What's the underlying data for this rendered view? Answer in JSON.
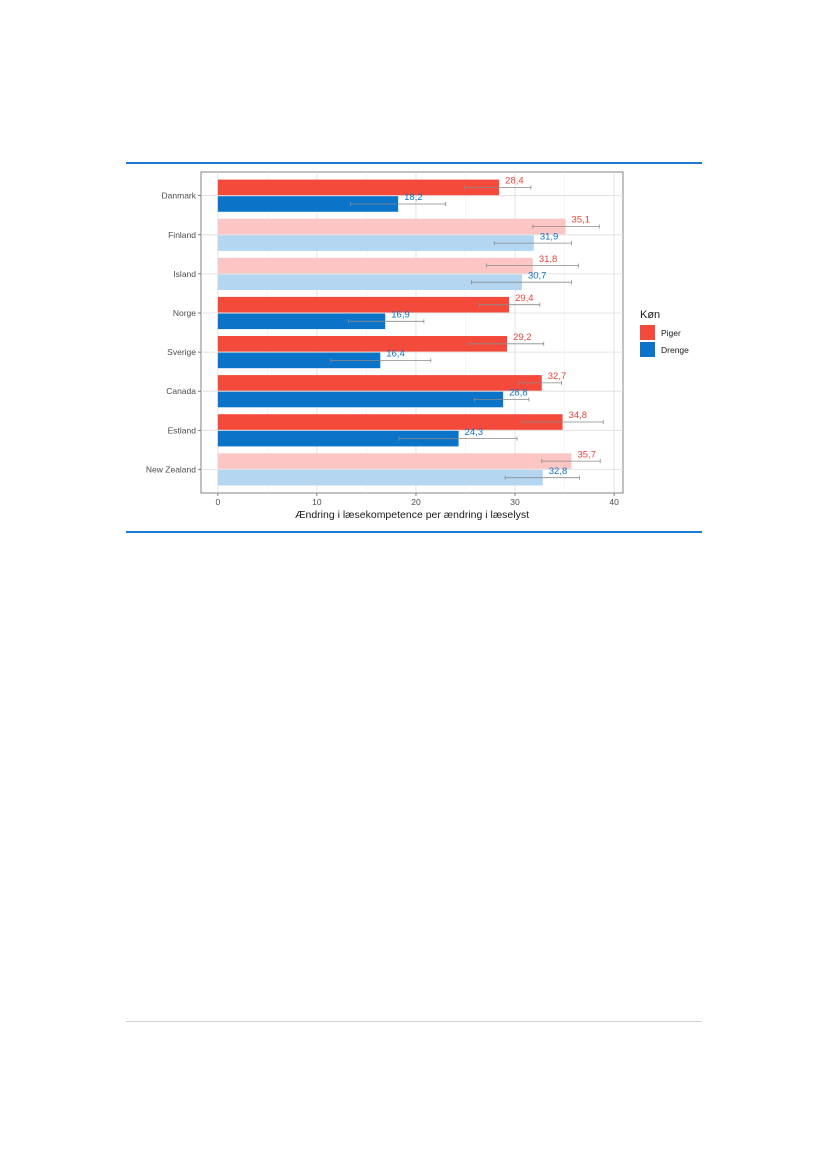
{
  "colors": {
    "rule": "#1f7bd1",
    "piger_strong": "#f44a3c",
    "piger_light": "#fbc6c3",
    "drenge_strong": "#0b74c9",
    "drenge_light": "#b5d6f0",
    "piger_label": "#e8453b",
    "drenge_label": "#1072c2",
    "errorbar": "#8a8a8a"
  },
  "chart_data": {
    "type": "bar",
    "orientation": "horizontal",
    "categories": [
      "Danmark",
      "Finland",
      "Island",
      "Norge",
      "Sverige",
      "Canada",
      "Estland",
      "New Zealand"
    ],
    "highlighted": [
      true,
      false,
      false,
      true,
      true,
      true,
      true,
      false
    ],
    "series": [
      {
        "name": "Piger",
        "values": [
          28.4,
          35.1,
          31.8,
          29.4,
          29.2,
          32.7,
          34.8,
          35.7
        ],
        "labels": [
          "28,4",
          "35,1",
          "31,8",
          "29,4",
          "29,2",
          "32,7",
          "34,8",
          "35,7"
        ],
        "error_low": [
          24.9,
          31.8,
          27.1,
          26.4,
          25.4,
          30.4,
          30.7,
          32.7
        ],
        "error_high": [
          31.6,
          38.5,
          36.4,
          32.5,
          32.9,
          34.7,
          38.9,
          38.6
        ]
      },
      {
        "name": "Drenge",
        "values": [
          18.2,
          31.9,
          30.7,
          16.9,
          16.4,
          28.8,
          24.3,
          32.8
        ],
        "labels": [
          "18,2",
          "31,9",
          "30,7",
          "16,9",
          "16,4",
          "28,8",
          "24,3",
          "32,8"
        ],
        "error_low": [
          13.4,
          27.9,
          25.6,
          13.2,
          11.4,
          25.9,
          18.3,
          29.0
        ],
        "error_high": [
          23.0,
          35.7,
          35.7,
          20.8,
          21.5,
          31.4,
          30.2,
          36.5
        ]
      }
    ],
    "x_ticks": [
      "0",
      "10",
      "20",
      "30",
      "40"
    ],
    "xlim": [
      -1.7,
      40.9
    ],
    "xlabel": "Ændring i læsekompetence per ændring i læselyst",
    "ylabel": "",
    "grid": true,
    "legend": {
      "title": "Køn",
      "position": "right",
      "items": [
        "Piger",
        "Drenge"
      ]
    }
  }
}
